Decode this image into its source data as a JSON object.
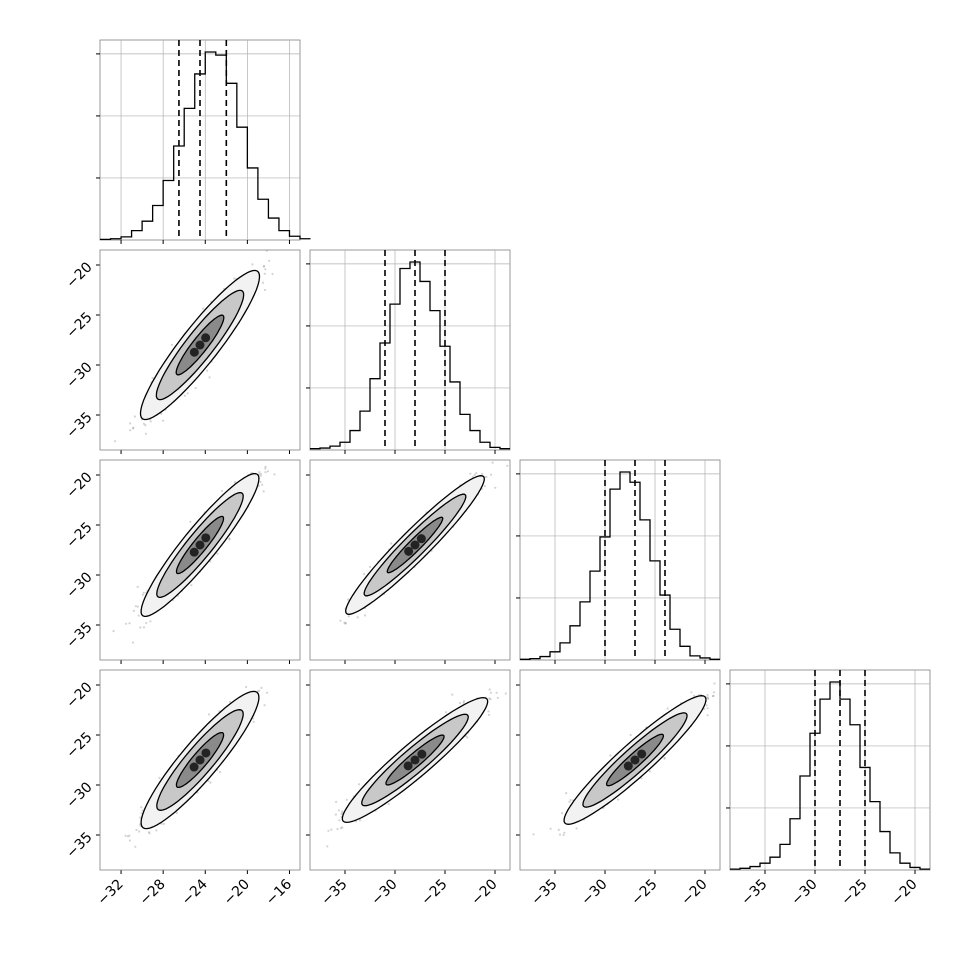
{
  "figure": {
    "type": "corner-plot",
    "n_dims": 4,
    "colors": {
      "line": "#000000",
      "grid": "#b0b0b0",
      "axes": "#7f7f7f",
      "points": "#808080"
    }
  },
  "axes": [
    {
      "range": [
        -34,
        -15
      ],
      "ticks": [
        -32,
        -28,
        -24,
        -20,
        -16
      ],
      "tick_labels": [
        "−32",
        "−28",
        "−24",
        "−20",
        "−16"
      ]
    },
    {
      "range": [
        -38.5,
        -18.5
      ],
      "ticks": [
        -35,
        -30,
        -25,
        -20
      ],
      "tick_labels": [
        "−35",
        "−30",
        "−25",
        "−20"
      ]
    },
    {
      "range": [
        -38.5,
        -18.5
      ],
      "ticks": [
        -35,
        -30,
        -25,
        -20
      ],
      "tick_labels": [
        "−35",
        "−30",
        "−25",
        "−20"
      ]
    },
    {
      "range": [
        -38.5,
        -18.5
      ],
      "ticks": [
        -35,
        -30,
        -25,
        -20
      ],
      "tick_labels": [
        "−35",
        "−30",
        "−25",
        "−20"
      ]
    }
  ],
  "chart_data": [
    {
      "type": "histogram",
      "dimension": 0,
      "bin_start": -34,
      "bin_width": 1,
      "counts": [
        1,
        2,
        5,
        15,
        30,
        55,
        95,
        150,
        210,
        265,
        300,
        295,
        250,
        180,
        115,
        65,
        35,
        15,
        6,
        2
      ],
      "quantiles": [
        -26.5,
        -24.5,
        -22.0
      ],
      "y_ticks_fraction": [
        0.33,
        0.66,
        0.99
      ],
      "grid": true
    },
    {
      "type": "histogram",
      "dimension": 1,
      "bin_start": -38.5,
      "bin_width": 1,
      "counts": [
        2,
        3,
        6,
        12,
        30,
        60,
        110,
        165,
        225,
        280,
        290,
        260,
        215,
        160,
        105,
        55,
        30,
        12,
        4,
        2
      ],
      "quantiles": [
        -31.0,
        -28.0,
        -25.0
      ],
      "y_ticks_fraction": [
        0.33,
        0.66,
        0.99
      ],
      "grid": true
    },
    {
      "type": "histogram",
      "dimension": 2,
      "bin_start": -38.5,
      "bin_width": 1,
      "counts": [
        1,
        2,
        5,
        12,
        25,
        50,
        85,
        130,
        180,
        250,
        275,
        260,
        205,
        145,
        95,
        45,
        20,
        6,
        3,
        1
      ],
      "quantiles": [
        -30.0,
        -27.0,
        -24.0
      ],
      "y_ticks_fraction": [
        0.33,
        0.66,
        0.99
      ],
      "grid": true
    },
    {
      "type": "histogram",
      "dimension": 3,
      "bin_start": -38.5,
      "bin_width": 1,
      "counts": [
        1,
        2,
        4,
        8,
        15,
        30,
        60,
        110,
        160,
        200,
        220,
        200,
        170,
        120,
        80,
        45,
        20,
        8,
        3,
        1
      ],
      "quantiles": [
        -30.0,
        -27.5,
        -25.0
      ],
      "y_ticks_fraction": [
        0.33,
        0.66,
        0.99
      ],
      "grid": true
    },
    {
      "type": "scatter-contour",
      "x_dim": 0,
      "y_dim": 1,
      "center": [
        -24.5,
        -28.0
      ],
      "major_sd": 3.6,
      "minor_sd": 0.55,
      "slope": 1.35,
      "levels_sigma": [
        1.2,
        2.2,
        3.0
      ]
    },
    {
      "type": "scatter-contour",
      "x_dim": 0,
      "y_dim": 2,
      "center": [
        -24.5,
        -27.0
      ],
      "major_sd": 3.5,
      "minor_sd": 0.5,
      "slope": 1.3,
      "levels_sigma": [
        1.2,
        2.2,
        3.0
      ]
    },
    {
      "type": "scatter-contour",
      "x_dim": 1,
      "y_dim": 2,
      "center": [
        -28.0,
        -27.0
      ],
      "major_sd": 3.8,
      "minor_sd": 0.45,
      "slope": 1.0,
      "levels_sigma": [
        1.2,
        2.2,
        3.0
      ]
    },
    {
      "type": "scatter-contour",
      "x_dim": 0,
      "y_dim": 3,
      "center": [
        -24.5,
        -27.5
      ],
      "major_sd": 3.4,
      "minor_sd": 0.55,
      "slope": 1.25,
      "levels_sigma": [
        1.2,
        2.2,
        3.0
      ]
    },
    {
      "type": "scatter-contour",
      "x_dim": 1,
      "y_dim": 3,
      "center": [
        -28.0,
        -27.5
      ],
      "major_sd": 3.7,
      "minor_sd": 0.5,
      "slope": 0.85,
      "levels_sigma": [
        1.2,
        2.2,
        3.0
      ]
    },
    {
      "type": "scatter-contour",
      "x_dim": 2,
      "y_dim": 3,
      "center": [
        -27.0,
        -27.5
      ],
      "major_sd": 3.7,
      "minor_sd": 0.5,
      "slope": 0.9,
      "levels_sigma": [
        1.2,
        2.2,
        3.0
      ]
    }
  ]
}
